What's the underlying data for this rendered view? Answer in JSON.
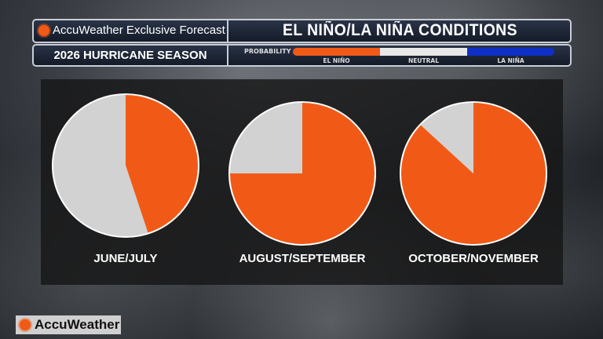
{
  "header": {
    "brand": "AccuWeather Exclusive Forecast",
    "title": "EL NIÑO/LA NIÑA CONDITIONS",
    "subtitle": "2026 HURRICANE SEASON",
    "probability_label": "PROBABILITY"
  },
  "colors": {
    "el_nino": "#f15a16",
    "neutral": "#d2d2d2",
    "la_nina": "#0f2fc7"
  },
  "chart_data": {
    "type": "pie",
    "legend": [
      "EL NIÑO",
      "NEUTRAL",
      "LA NIÑA"
    ],
    "legend_position": "top",
    "pies": [
      {
        "label": "JUNE/JULY",
        "values": {
          "EL NIÑO": 45,
          "NEUTRAL": 55,
          "LA NIÑA": 0
        }
      },
      {
        "label": "AUGUST/SEPTEMBER",
        "values": {
          "EL NIÑO": 75,
          "NEUTRAL": 25,
          "LA NIÑA": 0
        }
      },
      {
        "label": "OCTOBER/NOVEMBER",
        "values": {
          "EL NIÑO": 87,
          "NEUTRAL": 13,
          "LA NIÑA": 0
        }
      }
    ]
  },
  "footer": {
    "logo": "AccuWeather"
  }
}
